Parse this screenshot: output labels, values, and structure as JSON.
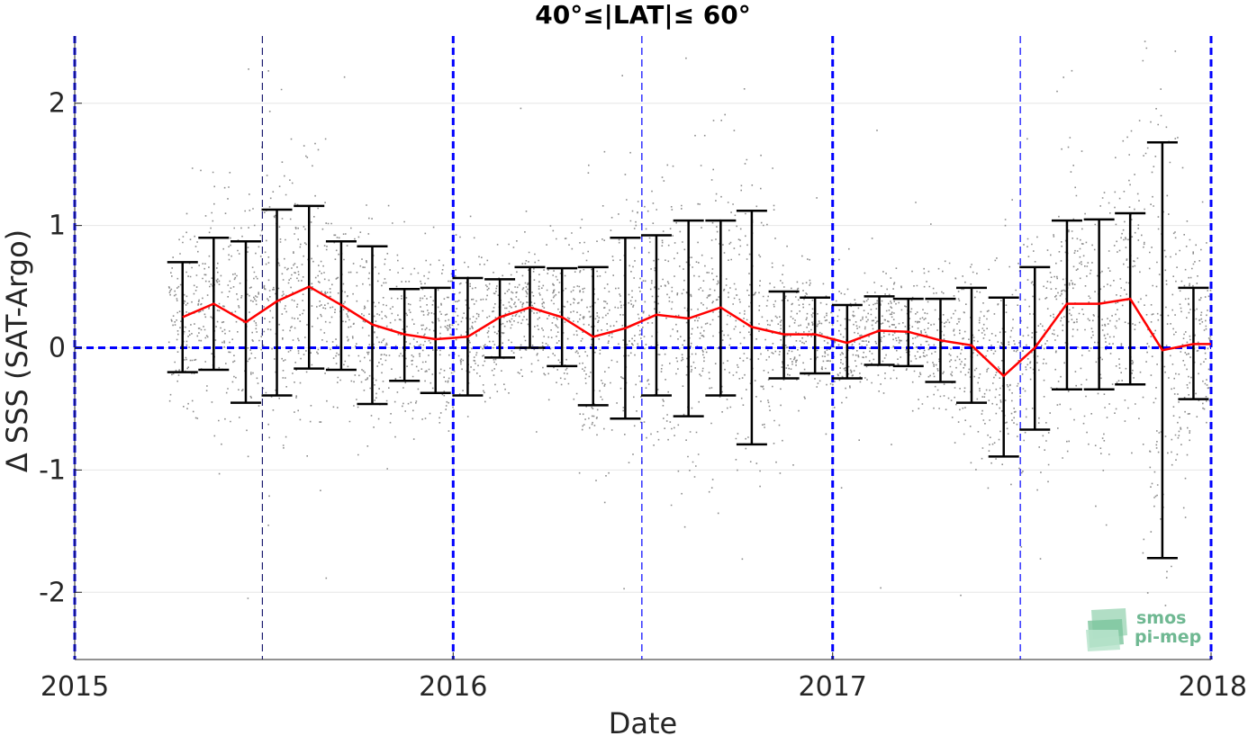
{
  "chart_data": {
    "type": "scatter",
    "title": "40°≤|LAT|≤ 60°",
    "xlabel": "Date",
    "ylabel": "Δ SSS (SAT-Argo)",
    "xlim": [
      "2015-01-01",
      "2018-01-01"
    ],
    "ylim": [
      -2.55,
      2.55
    ],
    "x_ticks": [
      "2015",
      "2016",
      "2017",
      "2018"
    ],
    "y_ticks": [
      -2,
      -1,
      0,
      1,
      2
    ],
    "y_tick_labels": [
      "-2",
      "-1",
      "0",
      "1",
      "2"
    ],
    "grid": true,
    "colors": {
      "scatter": "#8c8c8c",
      "mean_line": "#ff0000",
      "error_bars": "#000000",
      "reference_lines": "#0000ff"
    },
    "scatter_note_dates": [
      "2015-04-01",
      "2017-12-31"
    ],
    "mean_series": {
      "dates": [
        "2015-04-15",
        "2015-05-15",
        "2015-06-15",
        "2015-07-15",
        "2015-08-15",
        "2015-09-15",
        "2015-10-15",
        "2015-11-15",
        "2015-12-15",
        "2016-01-15",
        "2016-02-15",
        "2016-03-15",
        "2016-04-15",
        "2016-05-15",
        "2016-06-15",
        "2016-07-15",
        "2016-08-15",
        "2016-09-15",
        "2016-10-15",
        "2016-11-15",
        "2016-12-15",
        "2017-01-15",
        "2017-02-15",
        "2017-03-15",
        "2017-04-15",
        "2017-05-15",
        "2017-06-15",
        "2017-07-15",
        "2017-08-15",
        "2017-09-15",
        "2017-10-15",
        "2017-11-15",
        "2017-12-15"
      ],
      "mean": [
        0.25,
        0.36,
        0.21,
        0.38,
        0.5,
        0.35,
        0.19,
        0.11,
        0.07,
        0.09,
        0.25,
        0.33,
        0.25,
        0.09,
        0.16,
        0.27,
        0.24,
        0.33,
        0.17,
        0.11,
        0.11,
        0.04,
        0.14,
        0.13,
        0.06,
        0.02,
        -0.23,
        0.0,
        0.36,
        0.36,
        0.4,
        -0.02,
        0.03
      ],
      "upper": [
        0.7,
        0.9,
        0.87,
        1.13,
        1.16,
        0.87,
        0.83,
        0.48,
        0.49,
        0.57,
        0.56,
        0.66,
        0.65,
        0.66,
        0.9,
        0.92,
        1.04,
        1.04,
        1.12,
        0.46,
        0.41,
        0.35,
        0.42,
        0.4,
        0.4,
        0.49,
        0.41,
        0.66,
        1.04,
        1.05,
        1.1,
        1.68,
        0.49
      ],
      "lower": [
        -0.2,
        -0.18,
        -0.45,
        -0.39,
        -0.17,
        -0.18,
        -0.46,
        -0.27,
        -0.37,
        -0.39,
        -0.08,
        0.0,
        -0.15,
        -0.47,
        -0.58,
        -0.39,
        -0.56,
        -0.39,
        -0.79,
        -0.25,
        -0.21,
        -0.25,
        -0.14,
        -0.15,
        -0.28,
        -0.45,
        -0.89,
        -0.67,
        -0.34,
        -0.34,
        -0.3,
        -1.72,
        -0.42
      ]
    },
    "reference_lines": {
      "horizontal_y": 0,
      "vertical_dates_major": [
        "2015-01-01",
        "2016-01-01",
        "2017-01-01",
        "2018-01-01"
      ],
      "vertical_dates_minor": [
        "2015-07-01",
        "2016-07-01",
        "2017-07-01"
      ]
    }
  },
  "logo": {
    "line1": "smos",
    "line2": "pi-mep"
  }
}
